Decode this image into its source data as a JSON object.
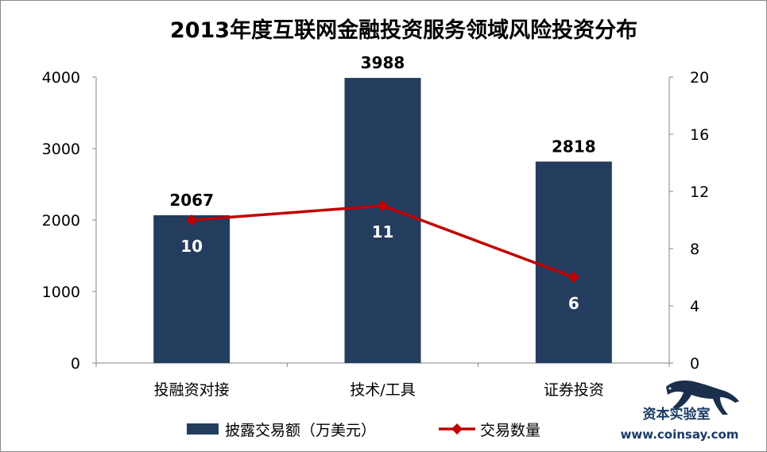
{
  "chart_data": {
    "type": "bar",
    "title": "2013年度互联网金融投资服务领域风险投资分布",
    "categories": [
      "投融资对接",
      "技术/工具",
      "证券投资"
    ],
    "series": [
      {
        "name": "披露交易额（万美元）",
        "type": "bar",
        "axis": "left",
        "values": [
          2067,
          3988,
          2818
        ],
        "color": "#243d5e"
      },
      {
        "name": "交易数量",
        "type": "line",
        "axis": "right",
        "values": [
          10,
          11,
          6
        ],
        "color": "#c00000"
      }
    ],
    "y_left": {
      "min": 0,
      "max": 4000,
      "ticks": [
        "0",
        "1000",
        "2000",
        "3000",
        "4000"
      ]
    },
    "y_right": {
      "min": 0,
      "max": 20,
      "ticks": [
        "0",
        "4",
        "8",
        "12",
        "16",
        "20"
      ]
    },
    "grid": false,
    "legend_position": "bottom"
  },
  "watermark": {
    "name": "资本实验室",
    "url": "www.coinsay.com",
    "icon": "panther-icon"
  }
}
